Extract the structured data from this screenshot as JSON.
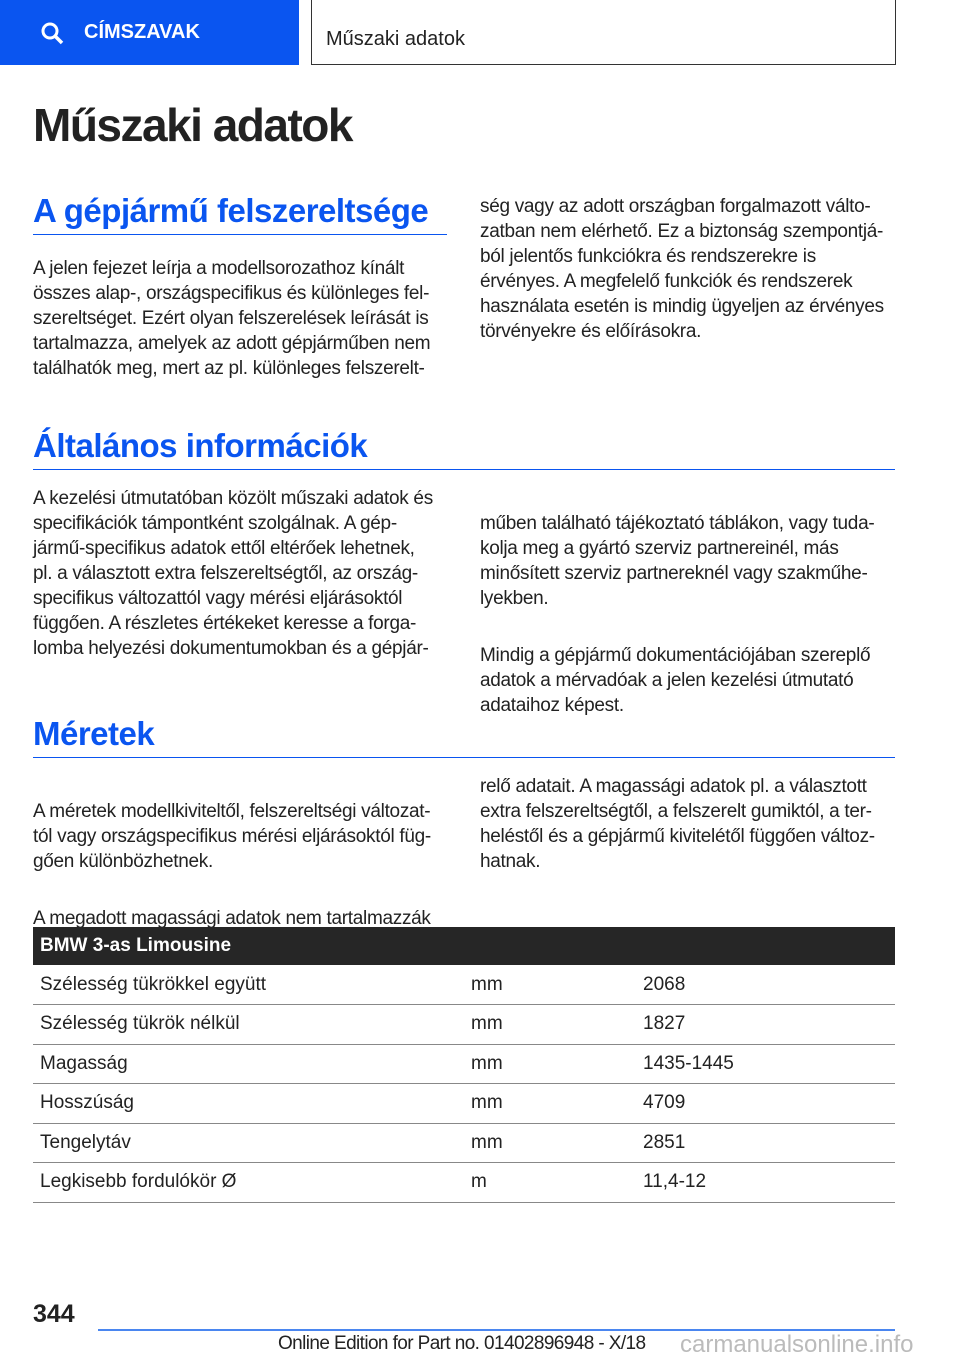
{
  "header": {
    "search_label": "CÍMSZAVAK",
    "breadcrumb": "Műszaki adatok"
  },
  "title": "Műszaki adatok",
  "sections": [
    {
      "heading": "A gépjármű felszereltsége",
      "left": "A jelen fejezet leírja a modellsorozathoz kínált\nösszes alap-, országspecifikus és különleges fel-\nszereltséget. Ezért olyan felszerelések leírását is\ntartalmazza, amelyek az adott gépjárműben nem\ntalálhatók meg, mert az pl. különleges felszerelt-",
      "right": "ség vagy az adott országban forgalmazott válto-\nzatban nem elérhető. Ez a biztonság szempontjá-\nból jelentős funkciókra és rendszerekre is\nérvényes. A megfelelő funkciók és rendszerek\nhasználata esetén is mindig ügyeljen az érvényes\ntörvényekre és előírásokra."
    },
    {
      "heading": "Általános információk",
      "left": "A kezelési útmutatóban közölt műszaki adatok és\nspecifikációk támpontként szolgálnak. A gép-\njármű-specifikus adatok ettől eltérőek lehetnek,\npl. a választott extra felszereltségtől, az ország-\nspecifikus változattól vagy mérési eljárásoktól\nfüggően. A részletes értékeket keresse a forga-\nlomba helyezési dokumentumokban és a gépjár-",
      "right": "műben található tájékoztató táblákon, vagy tuda-\nkolja meg a gyártó szerviz partnereinél, más\nminősített szerviz partnereknél vagy szakműhe-\nlyekben.",
      "right2": "Mindig a gépjármű dokumentációjában szereplő\nadatok a mérvadóak a jelen kezelési útmutató\nadataihoz képest."
    },
    {
      "heading": "Méretek",
      "left": "A méretek modellkiviteltől, felszereltségi változat-\ntól vagy országspecifikus mérési eljárásoktól füg-\ngően különbözhetnek.",
      "left2": "A megadott magassági adatok nem tartalmazzák\na tartozékok, pl. tetőantenna, tetősín vagy légte-",
      "right": "relő adatait. A magassági adatok pl. a választott\nextra felszereltségtől, a felszerelt gumiktól, a ter-\nheléstől és a gépjármű kivitelétől függően változ-\nhatnak."
    }
  ],
  "table": {
    "title": "BMW 3-as Limousine",
    "rows": [
      [
        "Szélesség tükrökkel együtt",
        "mm",
        "2068"
      ],
      [
        "Szélesség tükrök nélkül",
        "mm",
        "1827"
      ],
      [
        "Magasság",
        "mm",
        "1435-1445"
      ],
      [
        "Hosszúság",
        "mm",
        "4709"
      ],
      [
        "Tengelytáv",
        "mm",
        "2851"
      ],
      [
        "Legkisebb fordulókör Ø",
        "m",
        "11,4-12"
      ]
    ]
  },
  "footer": {
    "page": "344",
    "edition": "Online Edition for Part no. 01402896948 - X/18",
    "watermark": "carmanualsonline.info"
  },
  "colors": {
    "accent": "#0a55f0",
    "table_header": "#262626"
  }
}
